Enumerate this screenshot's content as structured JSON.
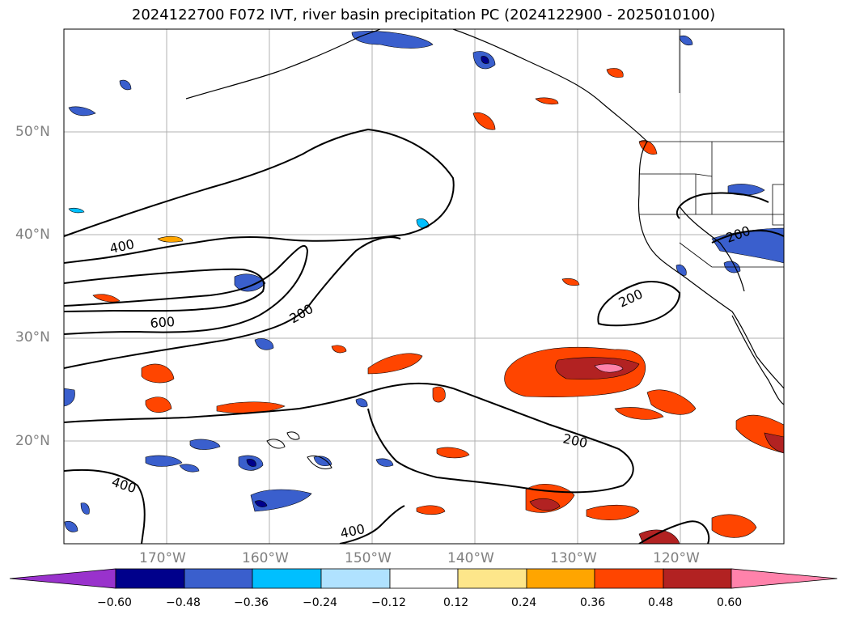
{
  "title": "2024122700 F072 IVT, river basin precipitation PC (2024122900 - 2025010100)",
  "map": {
    "projection": "PlateCarree",
    "lon_range": [
      -180,
      -110
    ],
    "lat_range": [
      10,
      60
    ],
    "background": "#ffffff",
    "coastline_color": "#000000",
    "grid_color": "#b0b0b0",
    "lat_labels": [
      "20°N",
      "30°N",
      "40°N",
      "50°N"
    ],
    "lon_labels": [
      "170°W",
      "160°W",
      "150°W",
      "140°W",
      "130°W",
      "120°W"
    ],
    "contour_labels": [
      "400",
      "600",
      "200",
      "200",
      "200",
      "200",
      "400",
      "400"
    ]
  },
  "colorbar": {
    "ticks": [
      "−0.60",
      "−0.48",
      "−0.36",
      "−0.24",
      "−0.12",
      "0.12",
      "0.24",
      "0.36",
      "0.48",
      "0.60"
    ],
    "colors": [
      "#9932cc",
      "#00008b",
      "#3a5fcd",
      "#00bfff",
      "#b0e2ff",
      "#ffffff",
      "#fde68a",
      "#ffa500",
      "#ff4500",
      "#b22222",
      "#ff82ab"
    ],
    "extend": "both"
  }
}
